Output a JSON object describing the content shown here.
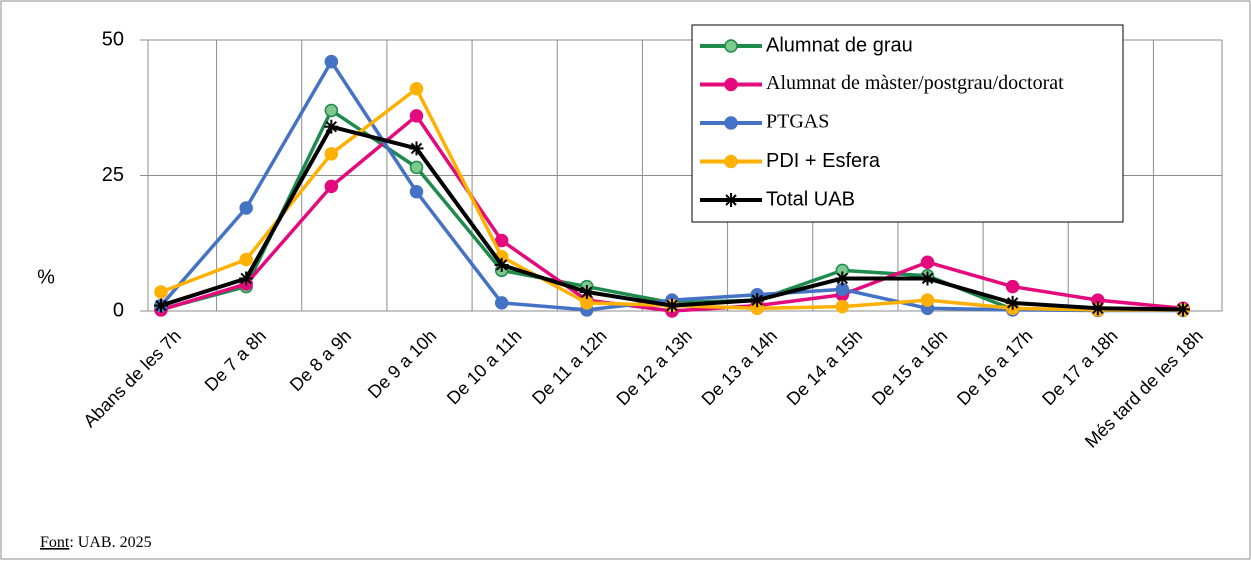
{
  "chart_data": {
    "type": "line",
    "y_label": "%",
    "categories": [
      "Abans de les 7h",
      "De 7 a 8h",
      "De 8 a 9h",
      "De 9 a 10h",
      "De 10 a 11h",
      "De 11 a 12h",
      "De 12 a 13h",
      "De 13 a 14h",
      "De 14 a 15h",
      "De 15 a 16h",
      "De 16 a 17h",
      "De 17 a 18h",
      "Més tard de les 18h"
    ],
    "series": [
      {
        "name": "Alumnat de grau",
        "color": "#1e8a4c",
        "values": [
          0.3,
          4.5,
          37,
          26.5,
          7.5,
          4.5,
          1.5,
          2,
          7.5,
          6.5,
          0.3,
          0.2,
          0.2
        ]
      },
      {
        "name": "Alumnat de màster/postgrau/doctorat",
        "color": "#e4097c",
        "values": [
          0.2,
          5,
          23,
          36,
          13,
          2,
          0,
          1,
          3,
          9,
          4.5,
          2,
          0.5
        ]
      },
      {
        "name": "PTGAS",
        "color": "#4472c4",
        "values": [
          1,
          19,
          46,
          22,
          1.5,
          0.2,
          2,
          3,
          4,
          0.5,
          0.2,
          0.1,
          0.1
        ]
      },
      {
        "name": "PDI + Esfera",
        "color": "#ffb000",
        "values": [
          3.5,
          9.5,
          29,
          41,
          10,
          1.5,
          1,
          0.5,
          0.8,
          2,
          0.5,
          0.2,
          0.2
        ]
      },
      {
        "name": "Total UAB",
        "color": "#000000",
        "values": [
          1,
          6,
          34,
          30,
          8.5,
          3.5,
          1,
          2,
          6,
          6,
          1.5,
          0.5,
          0.3
        ]
      }
    ],
    "ylim": [
      0,
      50
    ],
    "yticks": [
      0,
      25,
      50
    ],
    "grid": true,
    "legend": "top-right",
    "source_label": "Font",
    "source": ": UAB. 2025"
  }
}
